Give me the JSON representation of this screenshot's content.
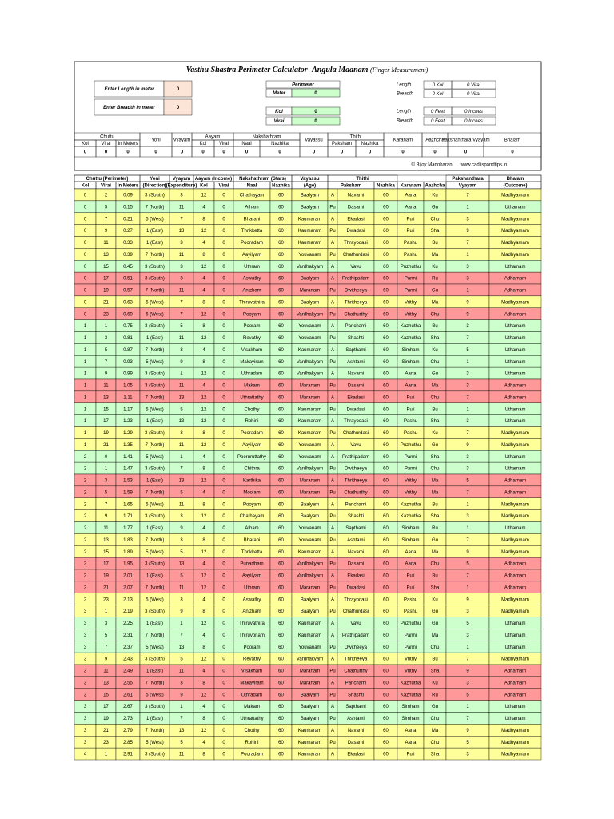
{
  "title": "Vasthu Shastra Perimeter Calculator- Angula Maanam",
  "subtitle": "(Finger Measurement)",
  "inputs": [
    {
      "label": "Enter Length in meter",
      "value": "0"
    },
    {
      "label": "Enter Breadth in meter",
      "value": "0"
    }
  ],
  "perimeter": {
    "header": "Perimeter",
    "rows": [
      [
        "Meter",
        "0"
      ],
      [
        "Kol",
        "0"
      ],
      [
        "Virai",
        "0"
      ]
    ]
  },
  "dimensions": [
    [
      "Length",
      "0 Kol",
      "0 Virai"
    ],
    [
      "Breadth",
      "0 Kol",
      "0 Virai"
    ],
    [
      "Length",
      "0 Feet",
      "0 Inches"
    ],
    [
      "Breadth",
      "0 Feet",
      "0 Inches"
    ]
  ],
  "summary": {
    "headers": [
      "Chuttu",
      "Kol",
      "Virai",
      "In Meters",
      "Yoni",
      "Vyayam",
      "Aayam",
      "Kol",
      "Virai",
      "Nakshathram",
      "Naal",
      "Nazhika",
      "Vayassu",
      "Thithi",
      "Paksham",
      "Nazhika",
      "Karanam",
      "Aazhcha",
      "Pakshanthara Vyayam",
      "Bhalam"
    ],
    "values": [
      "0",
      "0",
      "0",
      "0",
      "0",
      "0",
      "0",
      "0",
      "0",
      "0",
      "0",
      "0",
      "0",
      "0",
      "0",
      "0"
    ]
  },
  "credit": "© Bijoy Manoharan",
  "website": "www.cadlispandtips.in",
  "table": {
    "groups": [
      "Chuttu (Perimeter)",
      "Yoni",
      "Vyayam",
      "Aayam (Income)",
      "Nakshathram (Stars)",
      "Vayassu",
      "Thithi",
      "Pakshanthara",
      "Bhalam"
    ],
    "subheaders": [
      "Kol",
      "Virai",
      "In Meters",
      "(Direction)",
      "(Expenditure)",
      "Kol",
      "Virai",
      "Naal",
      "Nazhika",
      "(Age)",
      "Paksham",
      "Nazhika",
      "Karanam",
      "Aazhcha",
      "Vyayam",
      "(Outcome)"
    ],
    "row_colors": {
      "Madhyamam": "#ffff99",
      "Uthamam": "#ccffcc",
      "Adhamam": "#ff9999"
    },
    "rows": [
      [
        "0",
        "2",
        "0.09",
        "3 (South)",
        "3",
        "12",
        "0",
        "Chathayam",
        "60",
        "Baalyam",
        "A",
        "Navami",
        "60",
        "Aana",
        "Ku",
        "7",
        "Madhyamam"
      ],
      [
        "0",
        "5",
        "0.15",
        "7 (North)",
        "11",
        "4",
        "0",
        "Atham",
        "60",
        "Baalyam",
        "Pu",
        "Dasami",
        "60",
        "Aana",
        "Gu",
        "1",
        "Uthamam"
      ],
      [
        "0",
        "7",
        "0.21",
        "5 (West)",
        "7",
        "8",
        "0",
        "Bharani",
        "60",
        "Kaumaram",
        "A",
        "Ekadasi",
        "60",
        "Puli",
        "Chu",
        "3",
        "Madhyamam"
      ],
      [
        "0",
        "9",
        "0.27",
        "1 (East)",
        "13",
        "12",
        "0",
        "Thrikketta",
        "60",
        "Kaumaram",
        "Pu",
        "Dwadasi",
        "60",
        "Puli",
        "Sha",
        "9",
        "Madhyamam"
      ],
      [
        "0",
        "11",
        "0.33",
        "1 (East)",
        "3",
        "4",
        "0",
        "Pooradam",
        "60",
        "Kaumaram",
        "A",
        "Thrayodasi",
        "60",
        "Pashu",
        "Bu",
        "7",
        "Madhyamam"
      ],
      [
        "0",
        "13",
        "0.39",
        "7 (North)",
        "11",
        "8",
        "0",
        "Aayilyam",
        "60",
        "Youvanam",
        "Pu",
        "Chathurdasi",
        "60",
        "Pashu",
        "Ma",
        "1",
        "Madhyamam"
      ],
      [
        "0",
        "15",
        "0.45",
        "3 (South)",
        "3",
        "12",
        "0",
        "Uthram",
        "60",
        "Vardhakyam",
        "A",
        "Vavu",
        "60",
        "Puzhuthu",
        "Ku",
        "3",
        "Uthamam"
      ],
      [
        "0",
        "17",
        "0.51",
        "3 (South)",
        "3",
        "4",
        "0",
        "Aswathy",
        "60",
        "Baalyam",
        "A",
        "Prathipadam",
        "60",
        "Panni",
        "Ru",
        "3",
        "Adhamam"
      ],
      [
        "0",
        "19",
        "0.57",
        "7 (North)",
        "11",
        "4",
        "0",
        "Anizham",
        "60",
        "Maranam",
        "Pu",
        "Dwitheeya",
        "60",
        "Panni",
        "Gu",
        "1",
        "Adhamam"
      ],
      [
        "0",
        "21",
        "0.63",
        "5 (West)",
        "7",
        "8",
        "0",
        "Thiruvathira",
        "60",
        "Baalyam",
        "A",
        "Thritheeya",
        "60",
        "Vrithy",
        "Ma",
        "9",
        "Madhyamam"
      ],
      [
        "0",
        "23",
        "0.69",
        "5 (West)",
        "7",
        "12",
        "0",
        "Pooyam",
        "60",
        "Vardhakyam",
        "Pu",
        "Chathurthy",
        "60",
        "Vrithy",
        "Chu",
        "9",
        "Adhamam"
      ],
      [
        "1",
        "1",
        "0.75",
        "3 (South)",
        "5",
        "8",
        "0",
        "Pooram",
        "60",
        "Youvanam",
        "A",
        "Panchami",
        "60",
        "Kazhutha",
        "Bu",
        "3",
        "Uthamam"
      ],
      [
        "1",
        "3",
        "0.81",
        "1 (East)",
        "11",
        "12",
        "0",
        "Revathy",
        "60",
        "Youvanam",
        "Pu",
        "Shashti",
        "60",
        "Kazhutha",
        "Sha",
        "7",
        "Uthamam"
      ],
      [
        "1",
        "5",
        "0.87",
        "7 (North)",
        "3",
        "4",
        "0",
        "Visakham",
        "60",
        "Kaumaram",
        "A",
        "Sapthami",
        "60",
        "Simham",
        "Ku",
        "5",
        "Uthamam"
      ],
      [
        "1",
        "7",
        "0.93",
        "5 (West)",
        "9",
        "8",
        "0",
        "Makayiram",
        "60",
        "Vardhakyam",
        "Pu",
        "Ashtami",
        "60",
        "Simham",
        "Chu",
        "1",
        "Uthamam"
      ],
      [
        "1",
        "9",
        "0.99",
        "3 (South)",
        "1",
        "12",
        "0",
        "Uthradam",
        "60",
        "Vardhakyam",
        "A",
        "Navami",
        "60",
        "Aana",
        "Gu",
        "3",
        "Uthamam"
      ],
      [
        "1",
        "11",
        "1.05",
        "3 (South)",
        "11",
        "4",
        "0",
        "Makam",
        "60",
        "Maranam",
        "Pu",
        "Dasami",
        "60",
        "Aana",
        "Ma",
        "3",
        "Adhamam"
      ],
      [
        "1",
        "13",
        "1.11",
        "7 (North)",
        "13",
        "12",
        "0",
        "Uthrattathy",
        "60",
        "Maranam",
        "A",
        "Ekadasi",
        "60",
        "Puli",
        "Chu",
        "7",
        "Adhamam"
      ],
      [
        "1",
        "15",
        "1.17",
        "5 (West)",
        "5",
        "12",
        "0",
        "Chothy",
        "60",
        "Kaumaram",
        "Pu",
        "Dwadasi",
        "60",
        "Puli",
        "Bu",
        "1",
        "Uthamam"
      ],
      [
        "1",
        "17",
        "1.23",
        "1 (East)",
        "13",
        "12",
        "0",
        "Rohini",
        "60",
        "Kaumaram",
        "A",
        "Thrayodasi",
        "60",
        "Pashu",
        "Sha",
        "3",
        "Uthamam"
      ],
      [
        "1",
        "19",
        "1.29",
        "3 (South)",
        "3",
        "8",
        "0",
        "Pooradam",
        "60",
        "Kaumaram",
        "Pu",
        "Chathurdasi",
        "60",
        "Pashu",
        "Ku",
        "7",
        "Madhyamam"
      ],
      [
        "1",
        "21",
        "1.35",
        "7 (North)",
        "11",
        "12",
        "0",
        "Aayilyam",
        "60",
        "Youvanam",
        "A",
        "Vavu",
        "60",
        "Puzhuthu",
        "Gu",
        "9",
        "Madhyamam"
      ],
      [
        "2",
        "0",
        "1.41",
        "5 (West)",
        "1",
        "4",
        "0",
        "Pooruruttathy",
        "60",
        "Youvanam",
        "A",
        "Prathipadam",
        "60",
        "Panni",
        "Sha",
        "3",
        "Uthamam"
      ],
      [
        "2",
        "1",
        "1.47",
        "3 (South)",
        "7",
        "8",
        "0",
        "Chithra",
        "60",
        "Vardhakyam",
        "Pu",
        "Dwitheeya",
        "60",
        "Panni",
        "Chu",
        "3",
        "Uthamam"
      ],
      [
        "2",
        "3",
        "1.53",
        "1 (East)",
        "13",
        "12",
        "0",
        "Karthika",
        "60",
        "Maranam",
        "A",
        "Thritheeya",
        "60",
        "Vrithy",
        "Ma",
        "5",
        "Adhamam"
      ],
      [
        "2",
        "5",
        "1.59",
        "7 (North)",
        "5",
        "4",
        "0",
        "Moolam",
        "60",
        "Maranam",
        "Pu",
        "Chathurthy",
        "60",
        "Vrithy",
        "Ma",
        "7",
        "Adhamam"
      ],
      [
        "2",
        "7",
        "1.65",
        "5 (West)",
        "11",
        "8",
        "0",
        "Pooyam",
        "60",
        "Baalyam",
        "A",
        "Panchami",
        "60",
        "Kazhutha",
        "Bu",
        "1",
        "Madhyamam"
      ],
      [
        "2",
        "9",
        "1.71",
        "3 (South)",
        "3",
        "12",
        "0",
        "Chathayam",
        "60",
        "Baalyam",
        "Pu",
        "Shashti",
        "60",
        "Kazhutha",
        "Sha",
        "3",
        "Madhyamam"
      ],
      [
        "2",
        "11",
        "1.77",
        "1 (East)",
        "9",
        "4",
        "0",
        "Atham",
        "60",
        "Youvanam",
        "A",
        "Sapthami",
        "60",
        "Simham",
        "Ru",
        "1",
        "Uthamam"
      ],
      [
        "2",
        "13",
        "1.83",
        "7 (North)",
        "3",
        "8",
        "0",
        "Bharani",
        "60",
        "Youvanam",
        "Pu",
        "Ashtami",
        "60",
        "Simham",
        "Gu",
        "7",
        "Madhyamam"
      ],
      [
        "2",
        "15",
        "1.89",
        "5 (West)",
        "5",
        "12",
        "0",
        "Thrikketta",
        "60",
        "Kaumaram",
        "A",
        "Navami",
        "60",
        "Aana",
        "Ma",
        "9",
        "Madhyamam"
      ],
      [
        "2",
        "17",
        "1.95",
        "3 (South)",
        "13",
        "4",
        "0",
        "Punartham",
        "60",
        "Vardhakyam",
        "Pu",
        "Dasami",
        "60",
        "Aana",
        "Chu",
        "5",
        "Adhamam"
      ],
      [
        "2",
        "19",
        "2.01",
        "1 (East)",
        "5",
        "12",
        "0",
        "Aayilyam",
        "60",
        "Vardhakyam",
        "A",
        "Ekadasi",
        "60",
        "Puli",
        "Bu",
        "7",
        "Adhamam"
      ],
      [
        "2",
        "21",
        "2.07",
        "7 (North)",
        "11",
        "12",
        "0",
        "Uthram",
        "60",
        "Maranam",
        "Pu",
        "Dwadasi",
        "60",
        "Puli",
        "Sha",
        "1",
        "Adhamam"
      ],
      [
        "2",
        "23",
        "2.13",
        "5 (West)",
        "3",
        "4",
        "0",
        "Aswathy",
        "60",
        "Baalyam",
        "A",
        "Thrayodasi",
        "60",
        "Pashu",
        "Ku",
        "9",
        "Madhyamam"
      ],
      [
        "3",
        "1",
        "2.19",
        "3 (South)",
        "9",
        "8",
        "0",
        "Anizham",
        "60",
        "Baalyam",
        "Pu",
        "Chathurdasi",
        "60",
        "Pashu",
        "Gu",
        "3",
        "Madhyamam"
      ],
      [
        "3",
        "3",
        "2.25",
        "1 (East)",
        "1",
        "12",
        "0",
        "Thiruvathira",
        "60",
        "Kaumaram",
        "A",
        "Vavu",
        "60",
        "Puzhuthu",
        "Gu",
        "5",
        "Uthamam"
      ],
      [
        "3",
        "5",
        "2.31",
        "7 (North)",
        "7",
        "4",
        "0",
        "Thiruvonam",
        "60",
        "Kaumaram",
        "A",
        "Prathipadam",
        "60",
        "Panni",
        "Ma",
        "3",
        "Uthamam"
      ],
      [
        "3",
        "7",
        "2.37",
        "5 (West)",
        "13",
        "8",
        "0",
        "Pooram",
        "60",
        "Youvanam",
        "Pu",
        "Dwitheeya",
        "60",
        "Panni",
        "Chu",
        "1",
        "Uthamam"
      ],
      [
        "3",
        "9",
        "2.43",
        "3 (South)",
        "5",
        "12",
        "0",
        "Revathy",
        "60",
        "Vardhakyam",
        "A",
        "Thritheeya",
        "60",
        "Vrithy",
        "Bu",
        "7",
        "Madhyamam"
      ],
      [
        "3",
        "11",
        "2.49",
        "1 (East)",
        "11",
        "4",
        "0",
        "Visakham",
        "60",
        "Maranam",
        "Pu",
        "Chathurthy",
        "60",
        "Vrithy",
        "Sha",
        "9",
        "Adhamam"
      ],
      [
        "3",
        "13",
        "2.55",
        "7 (North)",
        "3",
        "8",
        "0",
        "Makayiram",
        "60",
        "Maranam",
        "A",
        "Panchami",
        "60",
        "Kazhutha",
        "Ku",
        "3",
        "Adhamam"
      ],
      [
        "3",
        "15",
        "2.61",
        "5 (West)",
        "9",
        "12",
        "0",
        "Uthradam",
        "60",
        "Baalyam",
        "Pu",
        "Shashti",
        "60",
        "Kazhutha",
        "Ru",
        "5",
        "Adhamam"
      ],
      [
        "3",
        "17",
        "2.67",
        "3 (South)",
        "1",
        "4",
        "0",
        "Makam",
        "60",
        "Baalyam",
        "A",
        "Sapthami",
        "60",
        "Simham",
        "Gu",
        "1",
        "Uthamam"
      ],
      [
        "3",
        "19",
        "2.73",
        "1 (East)",
        "7",
        "8",
        "0",
        "Uthrattathy",
        "60",
        "Baalyam",
        "Pu",
        "Ashtami",
        "60",
        "Simham",
        "Chu",
        "7",
        "Uthamam"
      ],
      [
        "3",
        "21",
        "2.79",
        "7 (North)",
        "13",
        "12",
        "0",
        "Chothy",
        "60",
        "Kaumaram",
        "A",
        "Navami",
        "60",
        "Aana",
        "Ma",
        "9",
        "Madhyamam"
      ],
      [
        "3",
        "23",
        "2.85",
        "5 (West)",
        "5",
        "4",
        "0",
        "Rohini",
        "60",
        "Kaumaram",
        "Pu",
        "Dasami",
        "60",
        "Aana",
        "Chu",
        "5",
        "Madhyamam"
      ],
      [
        "4",
        "1",
        "2.91",
        "3 (South)",
        "11",
        "8",
        "0",
        "Pooradam",
        "60",
        "Kaumaram",
        "A",
        "Ekadasi",
        "60",
        "Puli",
        "Sha",
        "3",
        "Madhyamam"
      ]
    ]
  }
}
